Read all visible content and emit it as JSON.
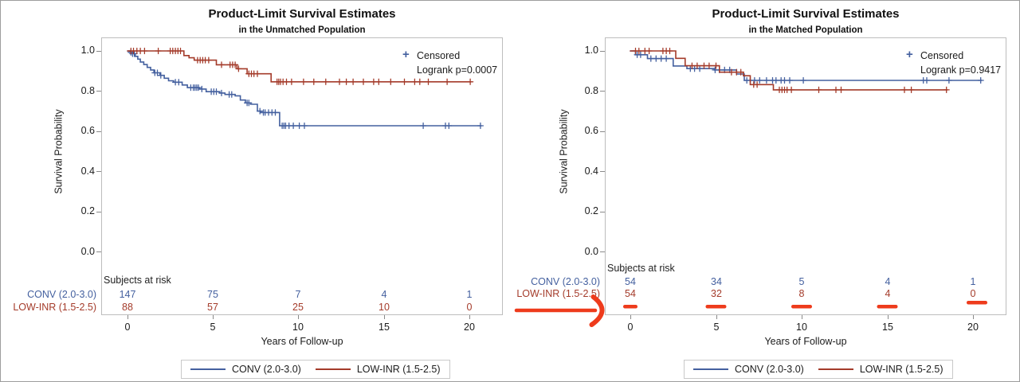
{
  "window": {
    "background": "#ffffff",
    "outer_border_color": "#9d9d9d"
  },
  "colors": {
    "conv": "#44609F",
    "lowinr": "#A43B2A",
    "annotation": "#EE3B1C",
    "frame": "#bdbdbd",
    "tick": "#8a8a8a",
    "text": "#1b1b1b"
  },
  "panels": [
    {
      "title": "Product-Limit Survival Estimates",
      "subtitle": "in the Unmatched Population",
      "censored_marker": "+",
      "censored_label": "Censored",
      "logrank_label": "Logrank p=0.0007",
      "ylabel": "Survival Probability",
      "xlabel": "Years of Follow-up",
      "yticks": [
        "1.0",
        "0.8",
        "0.6",
        "0.4",
        "0.2",
        "0.0"
      ],
      "xticks": [
        "0",
        "5",
        "10",
        "15",
        "20"
      ],
      "atrisk_header": "Subjects at risk",
      "groups": [
        {
          "label": "CONV (2.0-3.0)",
          "color_key": "conv",
          "atrisk": [
            "147",
            "75",
            "7",
            "4",
            "1"
          ]
        },
        {
          "label": "LOW-INR (1.5-2.5)",
          "color_key": "lowinr",
          "atrisk": [
            "88",
            "57",
            "25",
            "10",
            "0"
          ]
        }
      ],
      "legend_items": [
        {
          "label": "CONV (2.0-3.0)",
          "color_key": "conv"
        },
        {
          "label": "LOW-INR (1.5-2.5)",
          "color_key": "lowinr"
        }
      ]
    },
    {
      "title": "Product-Limit Survival Estimates",
      "subtitle": "in the Matched Population",
      "censored_marker": "+",
      "censored_label": "Censored",
      "logrank_label": "Logrank p=0.9417",
      "ylabel": "Survival Probability",
      "xlabel": "Years of Follow-up",
      "yticks": [
        "1.0",
        "0.8",
        "0.6",
        "0.4",
        "0.2",
        "0.0"
      ],
      "xticks": [
        "0",
        "5",
        "10",
        "15",
        "20"
      ],
      "atrisk_header": "Subjects at risk",
      "groups": [
        {
          "label": "CONV (2.0-3.0)",
          "color_key": "conv",
          "atrisk": [
            "54",
            "34",
            "5",
            "4",
            "1"
          ]
        },
        {
          "label": "LOW-INR (1.5-2.5)",
          "color_key": "lowinr",
          "atrisk": [
            "54",
            "32",
            "8",
            "4",
            "0"
          ]
        }
      ],
      "legend_items": [
        {
          "label": "CONV (2.0-3.0)",
          "color_key": "conv"
        },
        {
          "label": "LOW-INR (1.5-2.5)",
          "color_key": "lowinr"
        }
      ]
    }
  ],
  "annotations": {
    "color": "#EE3B1C",
    "arrow": {
      "description": "hand-drawn arrow pointing at the LOW-INR subjects-at-risk row",
      "tail_x": 647,
      "head_x": 746,
      "y": 389
    },
    "underline_row": "LOW-INR (1.5-2.5)",
    "underline_columns_years": [
      0,
      5,
      10,
      15,
      20
    ],
    "underlined_values": [
      "54",
      "32",
      "8",
      "4",
      "0"
    ]
  },
  "chart_data": [
    {
      "type": "line",
      "title": "Product-Limit Survival Estimates",
      "subtitle": "in the Unmatched Population",
      "xlabel": "Years of Follow-up",
      "ylabel": "Survival Probability",
      "xlim": [
        0,
        21.8
      ],
      "ylim": [
        0,
        1
      ],
      "xticks": [
        0,
        5,
        10,
        15,
        20
      ],
      "yticks": [
        0.0,
        0.2,
        0.4,
        0.6,
        0.8,
        1.0
      ],
      "logrank_p": 0.0007,
      "legend_position": "bottom",
      "series": [
        {
          "name": "CONV (2.0-3.0)",
          "color_key": "conv",
          "steps": [
            [
              0,
              1.0
            ],
            [
              0.15,
              0.993
            ],
            [
              0.3,
              0.986
            ],
            [
              0.45,
              0.973
            ],
            [
              0.6,
              0.959
            ],
            [
              0.75,
              0.945
            ],
            [
              0.95,
              0.932
            ],
            [
              1.15,
              0.918
            ],
            [
              1.35,
              0.905
            ],
            [
              1.55,
              0.891
            ],
            [
              1.9,
              0.878
            ],
            [
              2.15,
              0.864
            ],
            [
              2.4,
              0.851
            ],
            [
              2.7,
              0.844
            ],
            [
              3.2,
              0.83
            ],
            [
              3.5,
              0.817
            ],
            [
              4.2,
              0.81
            ],
            [
              4.6,
              0.797
            ],
            [
              5.4,
              0.79
            ],
            [
              5.7,
              0.783
            ],
            [
              6.3,
              0.776
            ],
            [
              6.6,
              0.755
            ],
            [
              6.9,
              0.741
            ],
            [
              7.2,
              0.734
            ],
            [
              7.6,
              0.7
            ],
            [
              7.8,
              0.693
            ],
            [
              8.9,
              0.627
            ],
            [
              20.7,
              0.627
            ]
          ],
          "censors": [
            0.2,
            0.3,
            0.4,
            1.6,
            1.75,
            1.95,
            2.8,
            3.0,
            3.7,
            3.85,
            3.95,
            4.05,
            4.15,
            4.35,
            4.9,
            5.05,
            5.2,
            5.5,
            5.95,
            6.1,
            7.0,
            7.1,
            7.75,
            7.95,
            8.05,
            8.25,
            8.45,
            8.65,
            9.05,
            9.15,
            9.25,
            9.45,
            9.7,
            10.05,
            10.35,
            17.3,
            18.6,
            18.8,
            20.65
          ]
        },
        {
          "name": "LOW-INR (1.5-2.5)",
          "color_key": "lowinr",
          "steps": [
            [
              0,
              1.0
            ],
            [
              3.3,
              0.977
            ],
            [
              3.6,
              0.966
            ],
            [
              3.9,
              0.954
            ],
            [
              5.2,
              0.931
            ],
            [
              6.4,
              0.911
            ],
            [
              7.0,
              0.886
            ],
            [
              8.4,
              0.846
            ],
            [
              20.1,
              0.846
            ]
          ],
          "censors": [
            0.2,
            0.35,
            0.55,
            0.75,
            1.0,
            1.8,
            2.5,
            2.65,
            2.8,
            2.95,
            3.1,
            4.1,
            4.25,
            4.4,
            4.55,
            4.75,
            5.5,
            6.0,
            6.15,
            6.3,
            6.5,
            7.1,
            7.25,
            7.4,
            7.6,
            8.75,
            8.85,
            8.95,
            9.1,
            9.3,
            9.6,
            10.3,
            10.9,
            11.6,
            12.4,
            12.8,
            13.2,
            13.8,
            14.4,
            14.7,
            15.4,
            16.2,
            16.8,
            17.1,
            17.6,
            18.7,
            20.05
          ]
        }
      ],
      "at_risk": {
        "times": [
          0,
          5,
          10,
          15,
          20
        ],
        "CONV (2.0-3.0)": [
          147,
          75,
          7,
          4,
          1
        ],
        "LOW-INR (1.5-2.5)": [
          88,
          57,
          25,
          10,
          0
        ]
      }
    },
    {
      "type": "line",
      "title": "Product-Limit Survival Estimates",
      "subtitle": "in the Matched Population",
      "xlabel": "Years of Follow-up",
      "ylabel": "Survival Probability",
      "xlim": [
        0,
        21.8
      ],
      "ylim": [
        0,
        1
      ],
      "xticks": [
        0,
        5,
        10,
        15,
        20
      ],
      "yticks": [
        0.0,
        0.2,
        0.4,
        0.6,
        0.8,
        1.0
      ],
      "logrank_p": 0.9417,
      "legend_position": "bottom",
      "series": [
        {
          "name": "CONV (2.0-3.0)",
          "color_key": "conv",
          "steps": [
            [
              0,
              1.0
            ],
            [
              0.3,
              0.981
            ],
            [
              1.0,
              0.962
            ],
            [
              2.5,
              0.925
            ],
            [
              3.3,
              0.912
            ],
            [
              4.9,
              0.905
            ],
            [
              6.2,
              0.885
            ],
            [
              6.65,
              0.853
            ],
            [
              20.5,
              0.853
            ]
          ],
          "censors": [
            0.4,
            0.6,
            1.2,
            1.5,
            1.8,
            2.1,
            3.5,
            3.75,
            4.05,
            4.95,
            5.2,
            5.5,
            5.8,
            6.8,
            7.0,
            7.25,
            7.55,
            7.95,
            8.3,
            8.5,
            8.8,
            9.0,
            9.3,
            10.1,
            17.1,
            17.3,
            18.6,
            20.45
          ]
        },
        {
          "name": "LOW-INR (1.5-2.5)",
          "color_key": "lowinr",
          "steps": [
            [
              0,
              1.0
            ],
            [
              2.65,
              0.963
            ],
            [
              3.2,
              0.926
            ],
            [
              5.2,
              0.894
            ],
            [
              6.6,
              0.876
            ],
            [
              7.0,
              0.832
            ],
            [
              8.35,
              0.806
            ],
            [
              18.5,
              0.806
            ]
          ],
          "censors": [
            0.3,
            0.5,
            0.85,
            1.1,
            1.9,
            2.1,
            2.3,
            3.6,
            3.9,
            4.3,
            4.6,
            5.0,
            5.9,
            6.2,
            6.45,
            7.2,
            7.4,
            8.7,
            8.85,
            9.0,
            9.15,
            9.4,
            11.0,
            12.0,
            12.3,
            16.0,
            16.4,
            18.45
          ]
        }
      ],
      "at_risk": {
        "times": [
          0,
          5,
          10,
          15,
          20
        ],
        "CONV (2.0-3.0)": [
          54,
          34,
          5,
          4,
          1
        ],
        "LOW-INR (1.5-2.5)": [
          54,
          32,
          8,
          4,
          0
        ]
      }
    }
  ]
}
